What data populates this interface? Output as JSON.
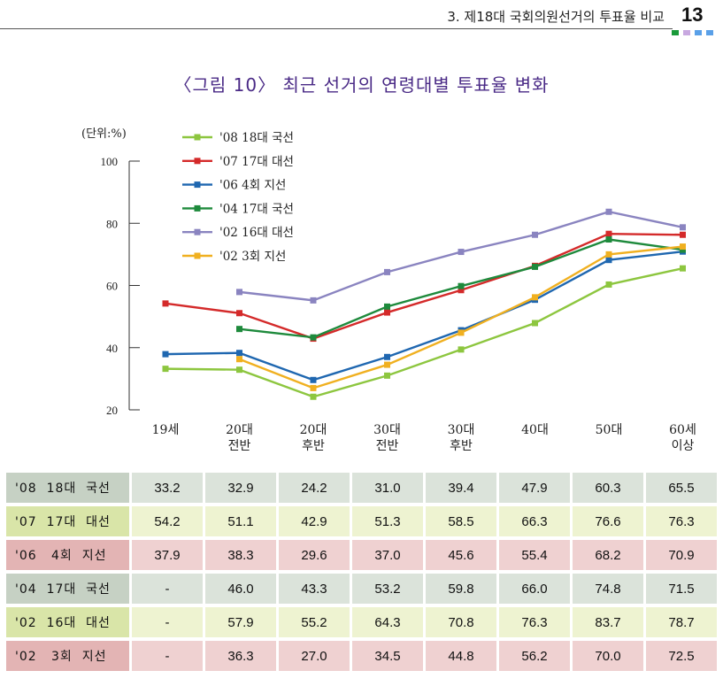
{
  "header": {
    "title": "3. 제18대 국회의원선거의 투표율 비교",
    "page_number": "13",
    "squares": [
      "#1a9a3a",
      "#c8a8e0",
      "#5aa0e8",
      "#5aa0e8"
    ]
  },
  "figure_title": "〈그림 10〉 최근 선거의 연령대별 투표율 변화",
  "chart_data": {
    "type": "line",
    "unit_label": "(단위:%)",
    "ylim": [
      20,
      100
    ],
    "yticks": [
      "20",
      "40",
      "60",
      "80",
      "100"
    ],
    "categories": [
      [
        "19세"
      ],
      [
        "20대",
        "전반"
      ],
      [
        "20대",
        "후반"
      ],
      [
        "30대",
        "전반"
      ],
      [
        "30대",
        "후반"
      ],
      [
        "40대"
      ],
      [
        "50대"
      ],
      [
        "60세",
        "이상"
      ]
    ],
    "legend_position": "top-left",
    "series": [
      {
        "name": "'08 18대 국선",
        "color": "#8dc63f",
        "values": [
          33.2,
          32.9,
          24.2,
          31.0,
          39.4,
          47.9,
          60.3,
          65.5
        ]
      },
      {
        "name": "'07 17대 대선",
        "color": "#d42a2a",
        "values": [
          54.2,
          51.1,
          42.9,
          51.3,
          58.5,
          66.3,
          76.6,
          76.3
        ]
      },
      {
        "name": "'06   4회 지선",
        "color": "#1f67b0",
        "values": [
          37.9,
          38.3,
          29.6,
          37.0,
          45.6,
          55.4,
          68.2,
          70.9
        ]
      },
      {
        "name": "'04 17대 국선",
        "color": "#1e8a3c",
        "values": [
          null,
          46.0,
          43.3,
          53.2,
          59.8,
          66.0,
          74.8,
          71.5
        ]
      },
      {
        "name": "'02 16대 대선",
        "color": "#8a84c0",
        "values": [
          null,
          57.9,
          55.2,
          64.3,
          70.8,
          76.3,
          83.7,
          78.7
        ]
      },
      {
        "name": "'02   3회 지선",
        "color": "#f0b020",
        "values": [
          null,
          36.3,
          27.0,
          34.5,
          44.8,
          56.2,
          70.0,
          72.5
        ]
      }
    ]
  },
  "table": {
    "rows": [
      {
        "label": "'08  18대  국선",
        "cells": [
          "33.2",
          "32.9",
          "24.2",
          "31.0",
          "39.4",
          "47.9",
          "60.3",
          "65.5"
        ]
      },
      {
        "label": "'07  17대  대선",
        "cells": [
          "54.2",
          "51.1",
          "42.9",
          "51.3",
          "58.5",
          "66.3",
          "76.6",
          "76.3"
        ]
      },
      {
        "label": "'06   4회  지선",
        "cells": [
          "37.9",
          "38.3",
          "29.6",
          "37.0",
          "45.6",
          "55.4",
          "68.2",
          "70.9"
        ]
      },
      {
        "label": "'04  17대  국선",
        "cells": [
          "-",
          "46.0",
          "43.3",
          "53.2",
          "59.8",
          "66.0",
          "74.8",
          "71.5"
        ]
      },
      {
        "label": "'02  16대  대선",
        "cells": [
          "-",
          "57.9",
          "55.2",
          "64.3",
          "70.8",
          "76.3",
          "83.7",
          "78.7"
        ]
      },
      {
        "label": "'02   3회  지선",
        "cells": [
          "-",
          "36.3",
          "27.0",
          "34.5",
          "44.8",
          "56.2",
          "70.0",
          "72.5"
        ]
      }
    ]
  }
}
